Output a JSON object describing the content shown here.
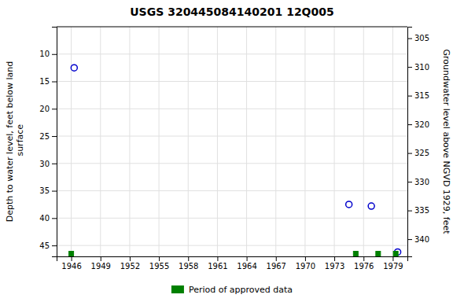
{
  "chart_data": {
    "type": "scatter",
    "title": "USGS 320445084140201 12Q005",
    "y_label": "Depth to water level, feet below land\n surface",
    "y2_label": "Groundwater level above NGVD 1929, feet",
    "xlim": [
      1944.5,
      1980.5
    ],
    "xticks": [
      1946,
      1949,
      1952,
      1955,
      1958,
      1961,
      1964,
      1967,
      1970,
      1973,
      1976,
      1979
    ],
    "ylim": [
      47,
      5
    ],
    "yticks": [
      10,
      15,
      20,
      25,
      30,
      35,
      40,
      45
    ],
    "y2lim": [
      343,
      303
    ],
    "y2ticks": [
      305,
      310,
      315,
      320,
      325,
      330,
      335,
      340
    ],
    "grid": true,
    "legend": "bottom",
    "series": [
      {
        "x": [
          1946.3,
          1974.5,
          1976.8,
          1979.5
        ],
        "values": [
          12.5,
          37.5,
          37.8,
          46.2
        ],
        "color": "#0000cc",
        "marker": "circle-open"
      },
      {
        "name": "Period of approved data",
        "x": [
          1946.0,
          1975.2,
          1977.5,
          1979.3
        ],
        "values": [
          46.5,
          46.5,
          46.5,
          46.5
        ],
        "color": "#008000",
        "marker": "square"
      }
    ]
  }
}
